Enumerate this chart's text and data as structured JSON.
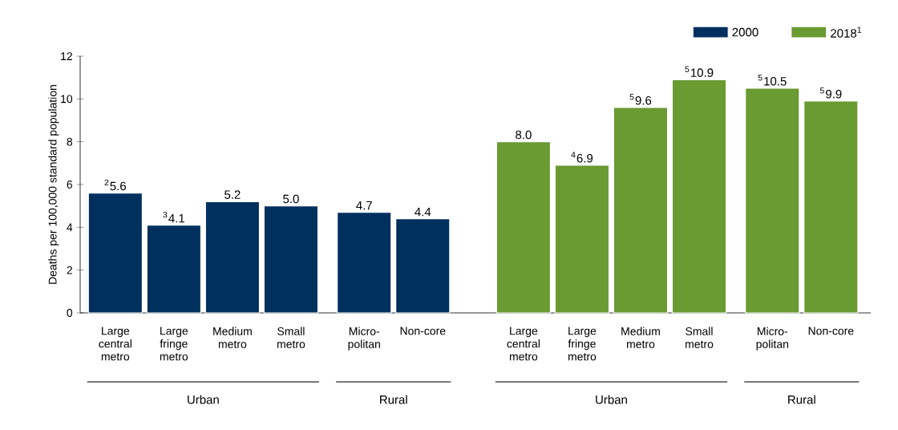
{
  "chart_data": {
    "type": "bar",
    "ylabel": "Deaths per 100,000 standard population",
    "categories": [
      "Large central metro",
      "Large fringe metro",
      "Medium metro",
      "Small metro",
      "Micro-politan",
      "Non-core",
      "Large central metro",
      "Large fringe metro",
      "Medium metro",
      "Small metro",
      "Micro-politan",
      "Non-core"
    ],
    "series": [
      {
        "name": "2000",
        "color": "#00305e",
        "values": [
          5.6,
          4.1,
          5.2,
          5.0,
          4.7,
          4.4,
          null,
          null,
          null,
          null,
          null,
          null
        ],
        "value_labels": [
          "$^{2}$5.6",
          "$^{3}$4.1",
          "5.2",
          "5.0",
          "4.7",
          "4.4",
          null,
          null,
          null,
          null,
          null,
          null
        ]
      },
      {
        "name": "2018$^{1}$",
        "color": "#6a9a32",
        "values": [
          null,
          null,
          null,
          null,
          null,
          null,
          8.0,
          6.9,
          9.6,
          10.9,
          10.5,
          9.9
        ],
        "value_labels": [
          null,
          null,
          null,
          null,
          null,
          null,
          "8.0",
          "$^{4}$6.9",
          "$^{5}$9.6",
          "$^{5}$10.9",
          "$^{5}$10.5",
          "$^{5}$9.9"
        ]
      }
    ],
    "ylim": [
      0,
      12
    ],
    "yticks": [
      0,
      2,
      4,
      6,
      8,
      10,
      12
    ],
    "legend": "top right",
    "annotations": [
      "Urban",
      "Rural",
      "Urban",
      "Rural"
    ]
  }
}
